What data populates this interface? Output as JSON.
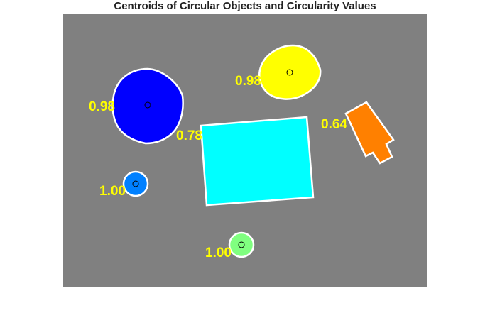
{
  "title": "Centroids of Circular Objects and Circularity Values",
  "colors": {
    "background": "#808080",
    "label": "#ffff00",
    "boundary": "#ffffff",
    "centroid": "#000000"
  },
  "objects": [
    {
      "color": "#0000ff",
      "label": "0.98",
      "centroid_marked": true
    },
    {
      "color": "#ffff00",
      "label": "0.98",
      "centroid_marked": true
    },
    {
      "color": "#00ffff",
      "label": "0.78",
      "centroid_marked": false
    },
    {
      "color": "#ff8000",
      "label": "0.64",
      "centroid_marked": false
    },
    {
      "color": "#0080ff",
      "label": "1.00",
      "centroid_marked": true
    },
    {
      "color": "#80ff80",
      "label": "1.00",
      "centroid_marked": true
    }
  ]
}
